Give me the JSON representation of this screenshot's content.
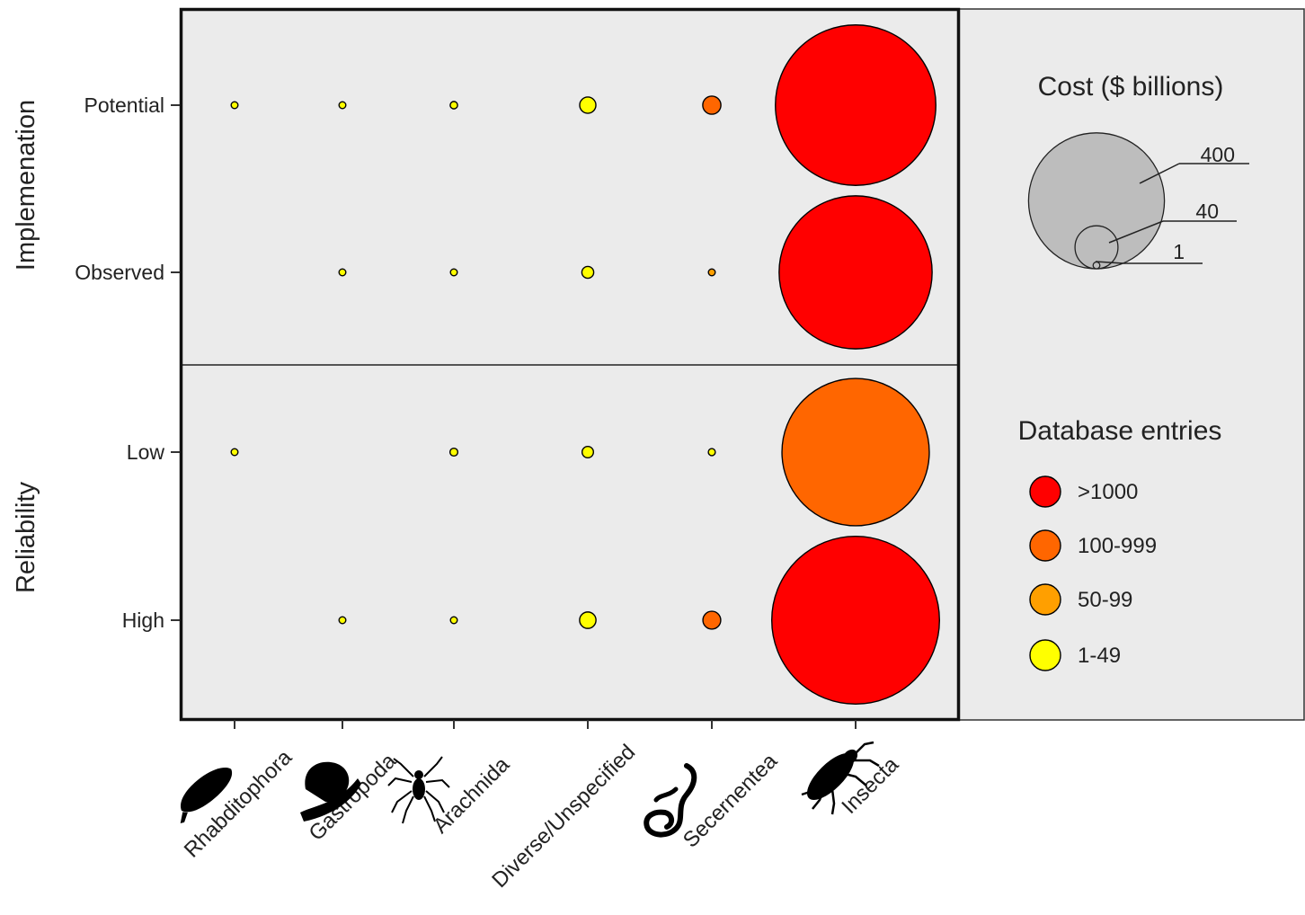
{
  "chart_data": {
    "type": "scatter",
    "encoding": "bubble: size = cost ($ billions), fill = number of database entries",
    "categories": [
      "Rhabditophora",
      "Gastropoda",
      "Arachnida",
      "Diverse/Unspecified",
      "Secernentea",
      "Insecta"
    ],
    "facets": [
      {
        "label": "Implemenation",
        "rows": [
          "Potential",
          "Observed"
        ]
      },
      {
        "label": "Reliability",
        "rows": [
          "Low",
          "High"
        ]
      }
    ],
    "points": [
      {
        "row": "Potential",
        "category": "Rhabditophora",
        "cost": 0.1,
        "entries": "1-49"
      },
      {
        "row": "Potential",
        "category": "Gastropoda",
        "cost": 0.1,
        "entries": "1-49"
      },
      {
        "row": "Potential",
        "category": "Arachnida",
        "cost": 0.9,
        "entries": "1-49"
      },
      {
        "row": "Potential",
        "category": "Diverse/Unspecified",
        "cost": 4.3,
        "entries": "1-49"
      },
      {
        "row": "Potential",
        "category": "Secernentea",
        "cost": 5.4,
        "entries": "100-999"
      },
      {
        "row": "Potential",
        "category": "Insecta",
        "cost": 421,
        "entries": ">1000"
      },
      {
        "row": "Observed",
        "category": "Gastropoda",
        "cost": 0.1,
        "entries": "1-49"
      },
      {
        "row": "Observed",
        "category": "Arachnida",
        "cost": 0.5,
        "entries": "1-49"
      },
      {
        "row": "Observed",
        "category": "Diverse/Unspecified",
        "cost": 2.3,
        "entries": "1-49"
      },
      {
        "row": "Observed",
        "category": "Secernentea",
        "cost": 0.5,
        "entries": "50-99"
      },
      {
        "row": "Observed",
        "category": "Insecta",
        "cost": 383,
        "entries": ">1000"
      },
      {
        "row": "Low",
        "category": "Rhabditophora",
        "cost": 0.05,
        "entries": "1-49"
      },
      {
        "row": "Low",
        "category": "Arachnida",
        "cost": 1.0,
        "entries": "1-49"
      },
      {
        "row": "Low",
        "category": "Diverse/Unspecified",
        "cost": 2.1,
        "entries": "1-49"
      },
      {
        "row": "Low",
        "category": "Secernentea",
        "cost": 0.8,
        "entries": "1-49"
      },
      {
        "row": "Low",
        "category": "Insecta",
        "cost": 355,
        "entries": "100-999"
      },
      {
        "row": "High",
        "category": "Gastropoda",
        "cost": 0.1,
        "entries": "1-49"
      },
      {
        "row": "High",
        "category": "Arachnida",
        "cost": 0.7,
        "entries": "1-49"
      },
      {
        "row": "High",
        "category": "Diverse/Unspecified",
        "cost": 4.4,
        "entries": "1-49"
      },
      {
        "row": "High",
        "category": "Secernentea",
        "cost": 5.2,
        "entries": "100-999"
      },
      {
        "row": "High",
        "category": "Insecta",
        "cost": 460,
        "entries": ">1000"
      }
    ],
    "size_legend": {
      "title": "Cost ($ billions)",
      "values": [
        400,
        40,
        1
      ],
      "labels": [
        "400",
        "40",
        "1"
      ]
    },
    "color_legend": {
      "title": "Database entries",
      "items": [
        {
          "label": ">1000",
          "color": "#ff0000"
        },
        {
          "label": "100-999",
          "color": "#ff6600"
        },
        {
          "label": "50-99",
          "color": "#ff9f00"
        },
        {
          "label": "1-49",
          "color": "#ffff00"
        }
      ]
    },
    "panel_background": "#ebebeb",
    "legend_circle_color": "#bdbdbd",
    "category_icons": [
      "flatworm-icon",
      "snail-icon",
      "spider-icon",
      "",
      "worm-icon",
      "beetle-icon"
    ]
  }
}
